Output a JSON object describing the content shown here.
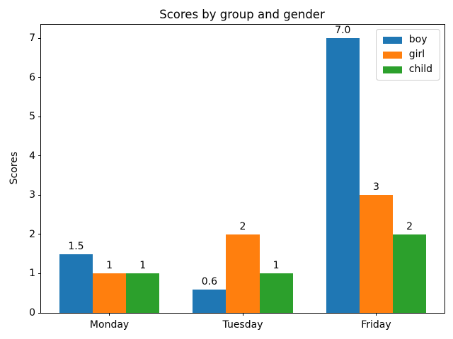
{
  "chart_data": {
    "type": "bar",
    "title": "Scores by group and gender",
    "xlabel": "",
    "ylabel": "Scores",
    "categories": [
      "Monday",
      "Tuesday",
      "Friday"
    ],
    "series": [
      {
        "name": "boy",
        "color": "#1f77b4",
        "values": [
          1.5,
          0.6,
          7.0
        ],
        "labels": [
          "1.5",
          "0.6",
          "7.0"
        ]
      },
      {
        "name": "girl",
        "color": "#ff7f0e",
        "values": [
          1,
          2,
          3
        ],
        "labels": [
          "1",
          "2",
          "3"
        ]
      },
      {
        "name": "child",
        "color": "#2ca02c",
        "values": [
          1,
          1,
          2
        ],
        "labels": [
          "1",
          "1",
          "2"
        ]
      }
    ],
    "yticks": [
      0,
      1,
      2,
      3,
      4,
      5,
      6,
      7
    ],
    "ylim": [
      0,
      7.35
    ],
    "xlim": [
      -0.5125,
      2.5125
    ],
    "bar_width": 0.25,
    "grid": false,
    "legend_position": "upper right",
    "legend_labels": [
      "boy",
      "girl",
      "child"
    ]
  }
}
